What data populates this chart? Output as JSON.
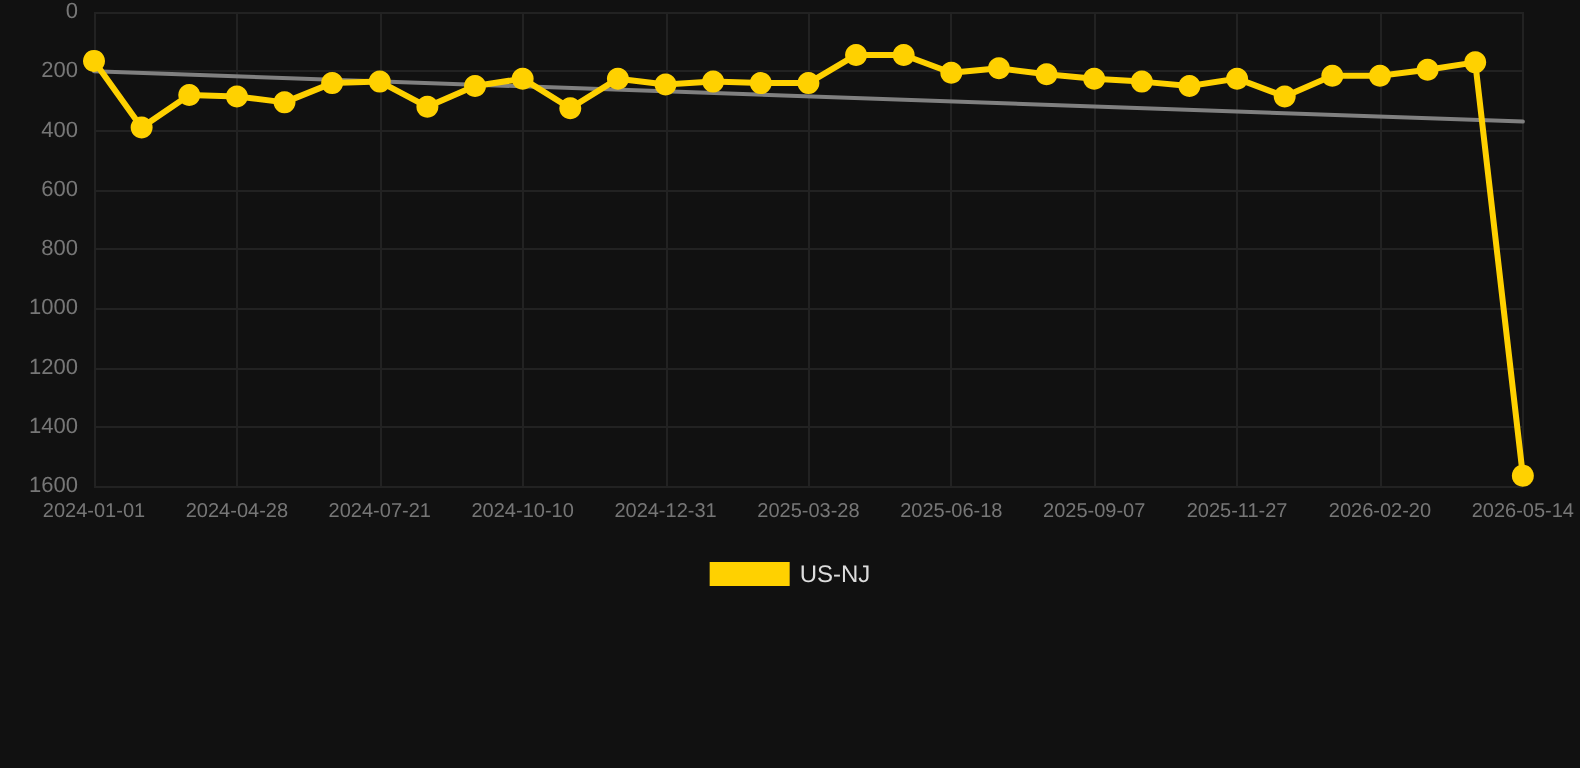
{
  "chart_data": {
    "type": "line",
    "categories": [
      "2024-01-01",
      null,
      null,
      "2024-04-28",
      null,
      null,
      "2024-07-21",
      null,
      null,
      "2024-10-10",
      null,
      null,
      "2024-12-31",
      null,
      null,
      "2025-03-28",
      null,
      null,
      "2025-06-18",
      null,
      null,
      "2025-09-07",
      null,
      null,
      "2025-11-27",
      null,
      null,
      "2026-02-20",
      null,
      null,
      "2026-05-14"
    ],
    "series": [
      {
        "name": "US-NJ",
        "color": "#ffd100",
        "values": [
          165,
          390,
          280,
          285,
          305,
          240,
          235,
          320,
          250,
          225,
          325,
          225,
          245,
          235,
          240,
          240,
          145,
          145,
          205,
          190,
          210,
          225,
          235,
          250,
          225,
          285,
          215,
          215,
          195,
          170,
          1565
        ]
      },
      {
        "type": "line",
        "color": "#808080",
        "marker": "none",
        "values": [
          200,
          null,
          null,
          null,
          null,
          null,
          null,
          null,
          null,
          null,
          null,
          null,
          null,
          null,
          null,
          null,
          null,
          null,
          null,
          null,
          null,
          null,
          null,
          null,
          null,
          null,
          null,
          null,
          null,
          null,
          370
        ]
      }
    ],
    "ylim": [
      1600,
      0
    ],
    "yticks": [
      0,
      200,
      400,
      600,
      800,
      1000,
      1200,
      1400,
      1600
    ],
    "grid": true,
    "legend": "bottom",
    "marker": "circle",
    "line_style": "solid"
  }
}
